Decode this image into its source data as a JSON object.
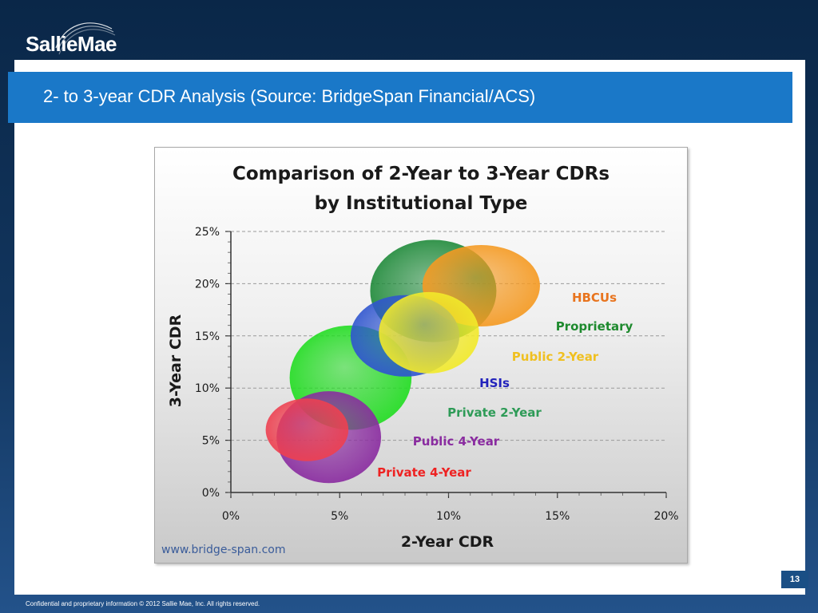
{
  "brand": {
    "name": "SallieMae"
  },
  "slide": {
    "title": "2- to 3-year CDR Analysis (Source: BridgeSpan Financial/ACS)",
    "page_number": "13",
    "footer": "Confidential and proprietary information © 2012 Sallie Mae, Inc. All rights reserved."
  },
  "colors": {
    "title_bar": "#1a78c8",
    "background_dark": "#0a2748"
  },
  "chart_data": {
    "type": "scatter",
    "title_line1": "Comparison of 2-Year to 3-Year CDRs",
    "title_line2": "by Institutional Type",
    "xlabel": "2-Year CDR",
    "ylabel": "3-Year CDR",
    "xlim": [
      0,
      20
    ],
    "ylim": [
      0,
      25
    ],
    "x_ticks": [
      "0%",
      "5%",
      "10%",
      "15%",
      "20%"
    ],
    "y_ticks": [
      "0%",
      "5%",
      "10%",
      "15%",
      "20%",
      "25%"
    ],
    "grid": "horizontal dashed",
    "source_note": "www.bridge-span.com",
    "bubbles": [
      {
        "name": "Private 2-Year",
        "x": 5.5,
        "y": 11.0,
        "rx": 2.8,
        "ry": 5.0,
        "color": "#22dd22",
        "label_color": "#2e9b57"
      },
      {
        "name": "Proprietary",
        "x": 9.3,
        "y": 19.3,
        "rx": 2.9,
        "ry": 4.9,
        "color": "#1f8a3a",
        "label_color": "#1e8a2e"
      },
      {
        "name": "HBCUs",
        "x": 11.5,
        "y": 19.8,
        "rx": 2.7,
        "ry": 3.9,
        "color": "#f59a22",
        "label_color": "#e8741e"
      },
      {
        "name": "HSIs",
        "x": 8.0,
        "y": 15.0,
        "rx": 2.5,
        "ry": 3.9,
        "color": "#2f55cf",
        "label_color": "#2222bb"
      },
      {
        "name": "Public 2-Year",
        "x": 9.1,
        "y": 15.3,
        "rx": 2.3,
        "ry": 3.9,
        "color": "#f2ea2a",
        "label_color": "#f0c020"
      },
      {
        "name": "Public 4-Year",
        "x": 4.5,
        "y": 5.3,
        "rx": 2.4,
        "ry": 4.4,
        "color": "#8a2ca0",
        "label_color": "#8a2ca0"
      },
      {
        "name": "Private 4-Year",
        "x": 3.5,
        "y": 6.0,
        "rx": 1.9,
        "ry": 3.0,
        "color": "#ee4050",
        "label_color": "#ee2222"
      }
    ]
  }
}
